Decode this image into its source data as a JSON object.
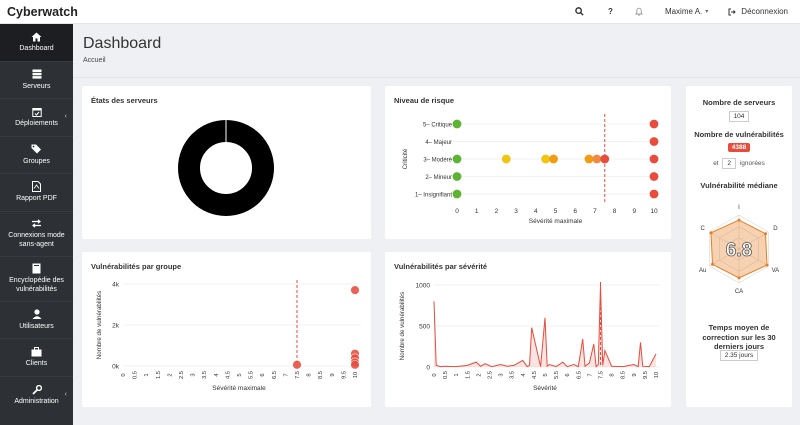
{
  "app": {
    "title": "Cyberwatch"
  },
  "topbar": {
    "search_icon": "search-icon",
    "help_label": "?",
    "user_name": "Maxime A.",
    "logout_label": "Déconnexion"
  },
  "sidebar": {
    "items": [
      {
        "label": "Dashboard",
        "icon": "home-icon"
      },
      {
        "label": "Serveurs",
        "icon": "server-icon"
      },
      {
        "label": "Déploiements",
        "icon": "calendar-check-icon"
      },
      {
        "label": "Groupes",
        "icon": "tags-icon"
      },
      {
        "label": "Rapport PDF",
        "icon": "file-pdf-icon"
      },
      {
        "label": "Connexions mode sans-agent",
        "icon": "exchange-icon"
      },
      {
        "label": "Encyclopédie des vulnérabilités",
        "icon": "book-icon"
      },
      {
        "label": "Utilisateurs",
        "icon": "user-icon"
      },
      {
        "label": "Clients",
        "icon": "briefcase-icon"
      },
      {
        "label": "Administration",
        "icon": "wrench-icon"
      }
    ]
  },
  "header": {
    "title": "Dashboard",
    "breadcrumb": "Accueil"
  },
  "panels": {
    "etats": {
      "title": "États des serveurs"
    },
    "risque": {
      "title": "Niveau de risque"
    },
    "groupe": {
      "title": "Vulnérabilités par groupe"
    },
    "severite": {
      "title": "Vulnérabilités par sévérité"
    }
  },
  "stats": {
    "servers_label": "Nombre de serveurs",
    "servers_value": "104",
    "vulns_label": "Nombre de vulnérabilités",
    "vulns_value": "4388",
    "ignored_prefix": "et",
    "ignored_value": "2",
    "ignored_suffix": "ignorées",
    "median_label": "Vulnérabilité médiane",
    "median_value": "6.8",
    "radar_axes": [
      "I",
      "D",
      "VA",
      "CA",
      "Au",
      "C"
    ],
    "mean_time_label": "Temps moyen de correction sur les 30 derniers jours",
    "mean_time_value": "2.35 jours"
  },
  "colors": {
    "accent": "#e74c3c",
    "sidebar": "#2d3034",
    "green": "#5cb531",
    "yellow": "#f1c40f",
    "orange": "#f39c12"
  },
  "chart_data": [
    {
      "type": "pie",
      "title": "États des serveurs",
      "values": [
        100
      ],
      "colors": [
        "#000000"
      ]
    },
    {
      "type": "scatter",
      "title": "Niveau de risque",
      "xlabel": "Sévérité maximale",
      "ylabel": "Criticité",
      "categories": [
        "5– Critique",
        "4– Majeur",
        "3– Modéré",
        "2– Mineur",
        "1– Insignifiant"
      ],
      "x_ticks": [
        "0",
        "1",
        "2",
        "3",
        "4",
        "5",
        "6",
        "7",
        "8",
        "9",
        "10"
      ],
      "xlim": [
        0,
        10
      ],
      "threshold_x": 7.5,
      "points": [
        {
          "x": 0,
          "y": "5– Critique",
          "color": "#5cb531"
        },
        {
          "x": 10,
          "y": "5– Critique",
          "color": "#e74c3c"
        },
        {
          "x": 10,
          "y": "4– Majeur",
          "color": "#e74c3c"
        },
        {
          "x": 0,
          "y": "3– Modéré",
          "color": "#5cb531"
        },
        {
          "x": 2.5,
          "y": "3– Modéré",
          "color": "#f1c40f"
        },
        {
          "x": 4.5,
          "y": "3– Modéré",
          "color": "#f1c40f"
        },
        {
          "x": 4.9,
          "y": "3– Modéré",
          "color": "#f39c12"
        },
        {
          "x": 6.7,
          "y": "3– Modéré",
          "color": "#f39c12"
        },
        {
          "x": 7.1,
          "y": "3– Modéré",
          "color": "#f08a3c"
        },
        {
          "x": 7.5,
          "y": "3– Modéré",
          "color": "#e74c3c"
        },
        {
          "x": 10,
          "y": "3– Modéré",
          "color": "#e74c3c"
        },
        {
          "x": 0,
          "y": "2– Mineur",
          "color": "#5cb531"
        },
        {
          "x": 10,
          "y": "2– Mineur",
          "color": "#e74c3c"
        },
        {
          "x": 0,
          "y": "1– Insignifiant",
          "color": "#5cb531"
        },
        {
          "x": 10,
          "y": "1– Insignifiant",
          "color": "#e74c3c"
        }
      ]
    },
    {
      "type": "scatter",
      "title": "Vulnérabilités par groupe",
      "xlabel": "Sévérité maximale",
      "ylabel": "Nombre de vulnérabilités",
      "y_ticks": [
        "0k",
        "2k",
        "4k"
      ],
      "ylim": [
        0,
        4000
      ],
      "x_ticks": [
        "0",
        "0.5",
        "1",
        "1.5",
        "2",
        "2.5",
        "3",
        "3.5",
        "4",
        "4.5",
        "5",
        "5.5",
        "6",
        "6.5",
        "7",
        "7.5",
        "8",
        "8.5",
        "9",
        "9.5",
        "10"
      ],
      "xlim": [
        0,
        10
      ],
      "threshold_x": 7.5,
      "points": [
        {
          "x": 10,
          "y": 3700
        },
        {
          "x": 7.5,
          "y": 60
        },
        {
          "x": 10,
          "y": 600
        },
        {
          "x": 10,
          "y": 380
        },
        {
          "x": 10,
          "y": 180
        },
        {
          "x": 10,
          "y": 60
        }
      ]
    },
    {
      "type": "area",
      "title": "Vulnérabilités par sévérité",
      "xlabel": "Sévérité",
      "ylabel": "Nombre de vulnérabilités",
      "y_ticks": [
        "0",
        "500",
        "1000"
      ],
      "ylim": [
        0,
        1000
      ],
      "x_ticks": [
        "0",
        "0.5",
        "1",
        "1.5",
        "2",
        "2.5",
        "3",
        "3.5",
        "4",
        "4.5",
        "5",
        "5.5",
        "6",
        "6.5",
        "7",
        "7.5",
        "8",
        "8.5",
        "9",
        "9.5",
        "10"
      ],
      "xlim": [
        0,
        10
      ],
      "threshold_x": 7.5,
      "x": [
        0,
        0.1,
        0.3,
        0.5,
        1,
        1.5,
        1.9,
        2.1,
        2.3,
        2.6,
        3,
        3.3,
        3.6,
        4,
        4.2,
        4.3,
        4.4,
        4.8,
        5,
        5.1,
        5.2,
        5.5,
        5.8,
        6,
        6.3,
        6.5,
        6.7,
        6.8,
        7,
        7.2,
        7.3,
        7.4,
        7.5,
        7.6,
        7.7,
        8,
        8.5,
        9,
        9.2,
        9.3,
        9.4,
        9.7,
        10
      ],
      "values": [
        800,
        20,
        5,
        10,
        5,
        20,
        60,
        10,
        40,
        5,
        30,
        10,
        20,
        80,
        5,
        20,
        480,
        5,
        600,
        10,
        30,
        5,
        60,
        5,
        30,
        5,
        340,
        10,
        50,
        280,
        5,
        30,
        1000,
        20,
        200,
        10,
        5,
        30,
        5,
        300,
        10,
        5,
        160
      ]
    }
  ]
}
